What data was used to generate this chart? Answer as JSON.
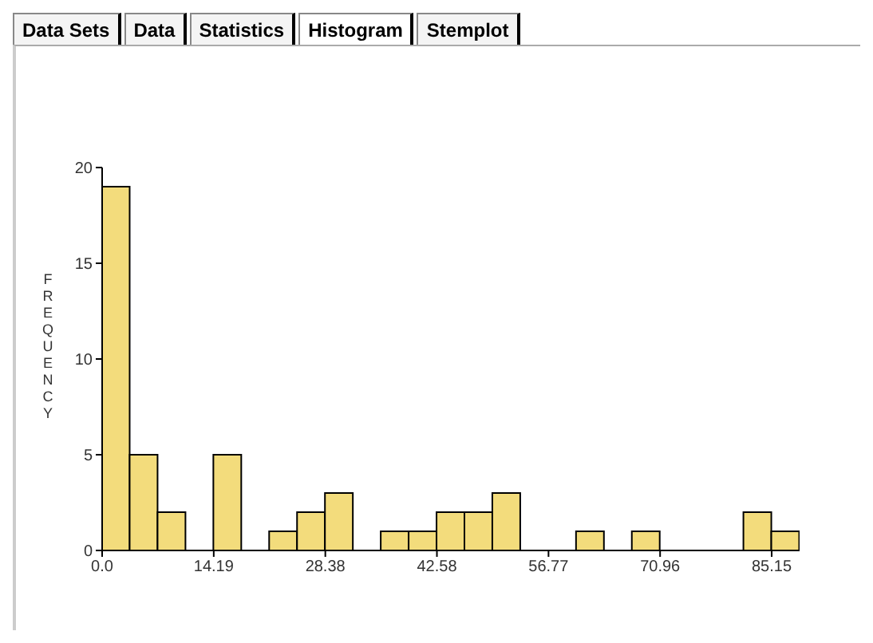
{
  "chart_data": {
    "type": "histogram",
    "ylabel": "FREQUENCY",
    "annotations": [
      "Data Sets",
      "Data",
      "Statistics",
      "Histogram",
      "Stemplot"
    ],
    "bins": [
      0,
      3.548,
      7.096,
      10.644,
      14.192,
      17.74,
      21.288,
      24.836,
      28.384,
      31.932,
      35.48,
      39.028,
      42.576,
      46.124,
      49.672,
      53.22,
      56.768,
      60.316,
      63.864,
      67.412,
      70.96,
      74.508,
      78.056,
      81.604,
      85.152,
      88.7
    ],
    "values": [
      19,
      5,
      2,
      0,
      5,
      0,
      1,
      2,
      3,
      0,
      1,
      1,
      2,
      2,
      3,
      0,
      0,
      1,
      0,
      1,
      0,
      0,
      0,
      2,
      1
    ],
    "color": "#f3dc7c",
    "xlim": [
      0,
      88.7
    ],
    "xticks": [
      {
        "value": 0,
        "label": "0.0"
      },
      {
        "value": 14.192,
        "label": "14.19"
      },
      {
        "value": 28.384,
        "label": "28.38"
      },
      {
        "value": 42.576,
        "label": "42.58"
      },
      {
        "value": 56.768,
        "label": "56.77"
      },
      {
        "value": 70.96,
        "label": "70.96"
      },
      {
        "value": 85.152,
        "label": "85.15"
      }
    ],
    "ylim": [
      0,
      20
    ],
    "yticks": [
      0,
      5,
      10,
      15,
      20
    ]
  }
}
